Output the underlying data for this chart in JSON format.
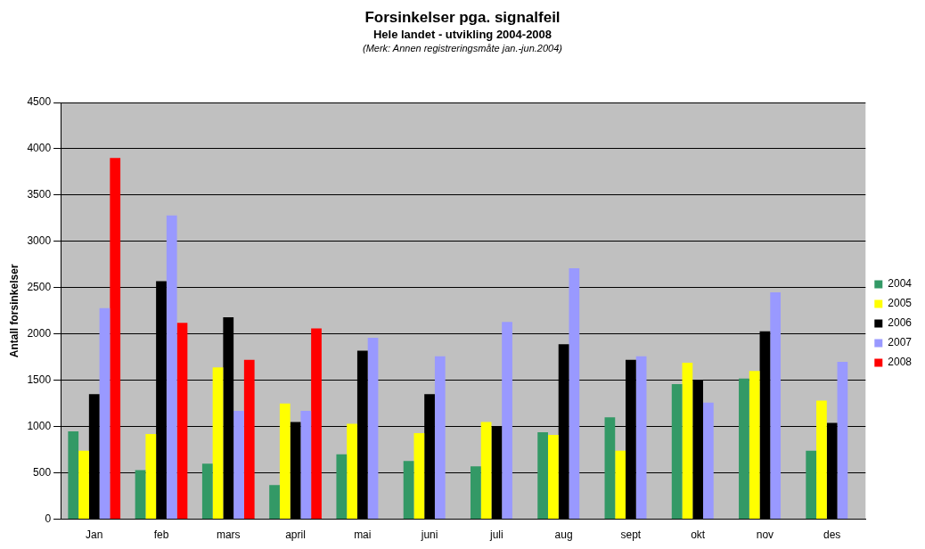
{
  "chart_data": {
    "type": "bar",
    "title": "Forsinkelser pga. signalfeil",
    "subtitle": "Hele landet - utvikling 2004-2008",
    "annotations": [
      "(Merk: Annen registreringsmåte jan.-jun.2004)"
    ],
    "ylabel": "Antall forsinkelser",
    "categories": [
      "Jan",
      "feb",
      "mars",
      "april",
      "mai",
      "juni",
      "juli",
      "aug",
      "sept",
      "okt",
      "nov",
      "des"
    ],
    "series": [
      {
        "name": "2004",
        "color": "#339966",
        "values": [
          950,
          530,
          600,
          370,
          700,
          630,
          570,
          940,
          1100,
          1460,
          1520,
          740
        ]
      },
      {
        "name": "2005",
        "color": "#ffff00",
        "values": [
          740,
          920,
          1640,
          1250,
          1030,
          930,
          1050,
          910,
          740,
          1690,
          1600,
          1280
        ]
      },
      {
        "name": "2006",
        "color": "#000000",
        "values": [
          1350,
          2570,
          2180,
          1050,
          1820,
          1350,
          1000,
          1890,
          1720,
          1500,
          2030,
          1040
        ]
      },
      {
        "name": "2007",
        "color": "#9999ff",
        "values": [
          2280,
          3280,
          1170,
          1170,
          1960,
          1760,
          2130,
          2710,
          1760,
          1260,
          2450,
          1700
        ]
      },
      {
        "name": "2008",
        "color": "#ff0000",
        "values": [
          3900,
          2120,
          1720,
          2060,
          null,
          null,
          null,
          null,
          null,
          null,
          null,
          null
        ]
      }
    ],
    "ylim": [
      0,
      4500
    ],
    "yticks": [
      0,
      500,
      1000,
      1500,
      2000,
      2500,
      3000,
      3500,
      4000,
      4500
    ],
    "grid": "y",
    "legend": "right"
  }
}
